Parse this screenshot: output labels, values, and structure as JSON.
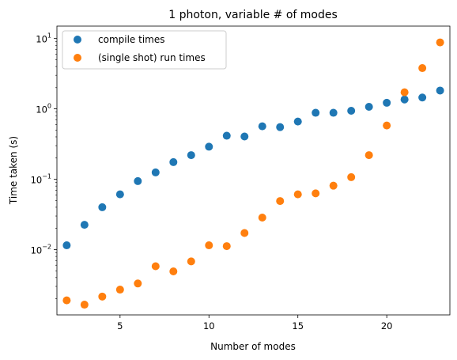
{
  "chart_data": {
    "type": "scatter",
    "title": "1 photon, variable # of modes",
    "xlabel": "Number of modes",
    "ylabel": "Time taken (s)",
    "xlim": [
      1.45,
      23.55
    ],
    "ylim": [
      0.00118,
      15.0
    ],
    "yscale": "log",
    "grid": false,
    "legend_position": "top-left",
    "xticks": [
      5,
      10,
      15,
      20
    ],
    "yticks": [
      {
        "value": 0.01,
        "base": "10",
        "exp": "−2"
      },
      {
        "value": 0.1,
        "base": "10",
        "exp": "−1"
      },
      {
        "value": 1,
        "base": "10",
        "exp": "0"
      },
      {
        "value": 10,
        "base": "10",
        "exp": "1"
      }
    ],
    "x": [
      2,
      3,
      4,
      5,
      6,
      7,
      8,
      9,
      10,
      11,
      12,
      13,
      14,
      15,
      16,
      17,
      18,
      19,
      20,
      21,
      22,
      23
    ],
    "series": [
      {
        "name": "compile times",
        "color": "#1f77b4",
        "values": [
          0.0115,
          0.0225,
          0.04,
          0.061,
          0.094,
          0.125,
          0.175,
          0.22,
          0.29,
          0.415,
          0.405,
          0.565,
          0.55,
          0.66,
          0.88,
          0.88,
          0.94,
          1.07,
          1.22,
          1.36,
          1.45,
          1.82
        ]
      },
      {
        "name": "(single shot) run times",
        "color": "#ff7f0e",
        "values": [
          0.0019,
          0.00165,
          0.00215,
          0.0027,
          0.0033,
          0.0058,
          0.0049,
          0.0068,
          0.0115,
          0.0112,
          0.0172,
          0.0285,
          0.049,
          0.061,
          0.063,
          0.081,
          0.107,
          0.22,
          0.58,
          1.72,
          3.8,
          8.8
        ]
      }
    ]
  }
}
